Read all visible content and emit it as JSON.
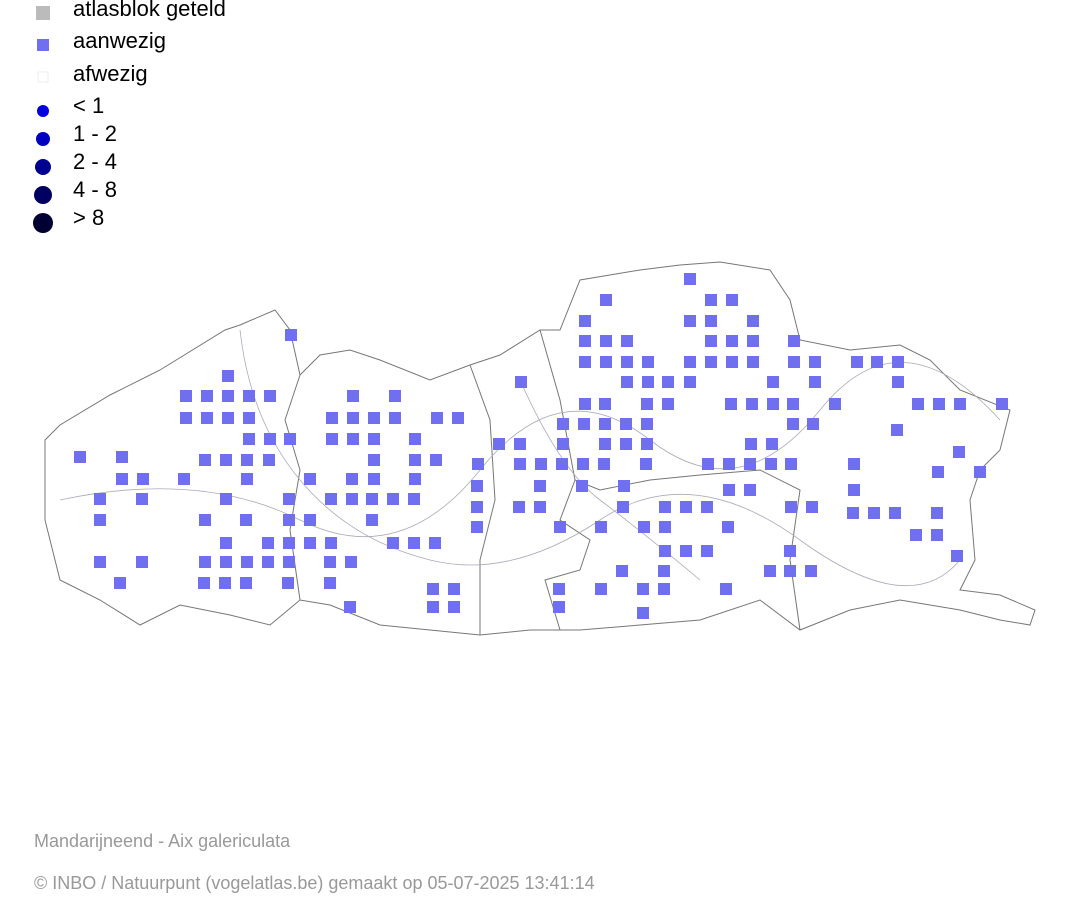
{
  "legend": {
    "items": [
      {
        "label": "atlasblok geteld"
      },
      {
        "label": "aanwezig"
      },
      {
        "label": "afwezig"
      },
      {
        "label": "< 1"
      },
      {
        "label": "1 - 2"
      },
      {
        "label": "2 - 4"
      },
      {
        "label": "4 - 8"
      },
      {
        "label": "> 8"
      }
    ]
  },
  "caption": {
    "species": "Mandarijneend - Aix galericulata",
    "credit": "© INBO / Natuurpunt (vogelatlas.be) gemaakt op 05-07-2025 13:41:14"
  }
}
